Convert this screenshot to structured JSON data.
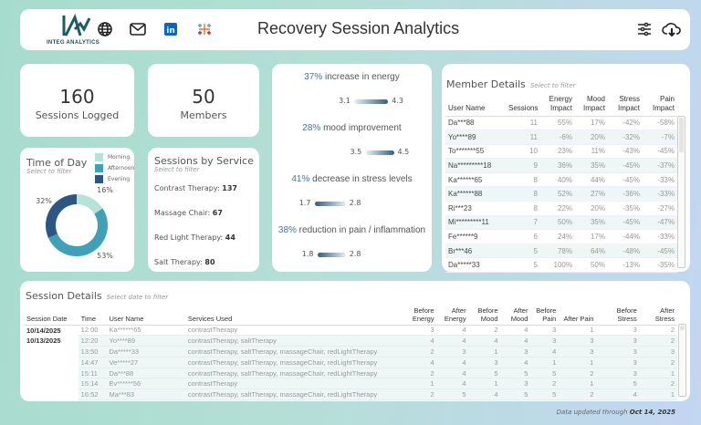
{
  "header": {
    "logo_text": "INTEG ANALYTICS",
    "title": "Recovery Session Analytics",
    "icons": [
      "globe-icon",
      "mail-icon",
      "linkedin-icon",
      "tableau-icon",
      "filter-sliders-icon",
      "cloud-download-icon"
    ]
  },
  "kpis": {
    "sessions_value": "160",
    "sessions_label": "Sessions Logged",
    "members_value": "50",
    "members_label": "Members"
  },
  "time_of_day": {
    "title": "Time of Day",
    "subtitle": "Select to filter",
    "legend": [
      "Morning",
      "Afternoon",
      "Evening"
    ],
    "colors": [
      "#b5e3d8",
      "#3fa0b8",
      "#2a5784"
    ],
    "values": [
      16,
      53,
      32
    ],
    "labels": [
      "16%",
      "53%",
      "32%"
    ]
  },
  "services": {
    "title": "Sessions by Service",
    "subtitle": "Select to filter",
    "items": [
      {
        "label": "Contrast Therapy: ",
        "value": "137"
      },
      {
        "label": "Massage Chair: ",
        "value": "67"
      },
      {
        "label": "Red Light Therapy: ",
        "value": "44"
      },
      {
        "label": "Salt Therapy: ",
        "value": "80"
      }
    ]
  },
  "impacts": [
    {
      "pct": "37%",
      "text": " increase in energy",
      "before": 3.1,
      "after": 4.3,
      "before_label": "3.1",
      "after_label": "4.3"
    },
    {
      "pct": "28%",
      "text": " mood improvement",
      "before": 3.5,
      "after": 4.5,
      "before_label": "3.5",
      "after_label": "4.5"
    },
    {
      "pct": "41%",
      "text": " decrease in stress levels",
      "before": 2.8,
      "after": 1.7,
      "before_label": "1.7",
      "after_label": "2.8"
    },
    {
      "pct": "38%",
      "text": " reduction in pain / inflammation",
      "before": 2.8,
      "after": 1.8,
      "before_label": "1.8",
      "after_label": "2.8"
    }
  ],
  "members": {
    "title": "Member Details",
    "subtitle": "Select to filter",
    "columns": [
      "User Name",
      "Sessions",
      "Energy Impact",
      "Mood Impact",
      "Stress Impact",
      "Pain Impact"
    ],
    "rows": [
      [
        "Da***88",
        "11",
        "55%",
        "17%",
        "-42%",
        "-58%"
      ],
      [
        "Yo****89",
        "11",
        "-6%",
        "20%",
        "-32%",
        "-7%"
      ],
      [
        "To*******55",
        "10",
        "23%",
        "11%",
        "-43%",
        "-45%"
      ],
      [
        "Na*********18",
        "9",
        "36%",
        "35%",
        "-45%",
        "-37%"
      ],
      [
        "Ka******65",
        "8",
        "40%",
        "44%",
        "-45%",
        "-33%"
      ],
      [
        "Ka******88",
        "8",
        "52%",
        "27%",
        "-36%",
        "-33%"
      ],
      [
        "Ri***23",
        "8",
        "22%",
        "20%",
        "-35%",
        "-27%"
      ],
      [
        "Mi*********11",
        "7",
        "50%",
        "35%",
        "-45%",
        "-47%"
      ],
      [
        "Fe******9",
        "6",
        "24%",
        "17%",
        "-44%",
        "-33%"
      ],
      [
        "Br***46",
        "5",
        "78%",
        "64%",
        "-48%",
        "-45%"
      ],
      [
        "Da*****33",
        "5",
        "100%",
        "50%",
        "-13%",
        "-35%"
      ]
    ]
  },
  "sessions": {
    "title": "Session Details",
    "subtitle": "Select date to filter",
    "columns": [
      "Session Date",
      "Time",
      "User Name",
      "Services Used",
      "Before Energy",
      "After Energy",
      "Before Mood",
      "After Mood",
      "Before Pain",
      "After Pain",
      "Before Stress",
      "After Stress"
    ],
    "rows": [
      [
        "10/14/2025",
        "12:00",
        "Ka******65",
        "contrastTherapy",
        "3",
        "4",
        "2",
        "4",
        "3",
        "1",
        "3",
        "2"
      ],
      [
        "10/13/2025",
        "12:20",
        "Yo****89",
        "contrastTherapy, saltTherapy",
        "4",
        "4",
        "4",
        "4",
        "3",
        "3",
        "3",
        "2"
      ],
      [
        "",
        "13:50",
        "Da*****33",
        "contrastTherapy, saltTherapy, massageChair, redLightTherapy",
        "2",
        "3",
        "1",
        "3",
        "4",
        "3",
        "3",
        "3"
      ],
      [
        "",
        "14:47",
        "Ve*****27",
        "contrastTherapy, saltTherapy, massageChair, redLightTherapy",
        "4",
        "4",
        "3",
        "4",
        "1",
        "1",
        "3",
        "2"
      ],
      [
        "",
        "15:11",
        "Da***88",
        "contrastTherapy, saltTherapy, massageChair, redLightTherapy",
        "2",
        "4",
        "5",
        "5",
        "5",
        "2",
        "3",
        "1"
      ],
      [
        "",
        "15:14",
        "Ev******56",
        "contrastTherapy",
        "1",
        "4",
        "1",
        "3",
        "2",
        "1",
        "5",
        "2"
      ],
      [
        "",
        "16:52",
        "Ma***83",
        "contrastTherapy, saltTherapy, massageChair, redLightTherapy",
        "2",
        "5",
        "4",
        "5",
        "5",
        "2",
        "4",
        "1"
      ]
    ]
  },
  "footer": {
    "prefix": "Data updated through ",
    "date": "Oct 14, 2025"
  }
}
